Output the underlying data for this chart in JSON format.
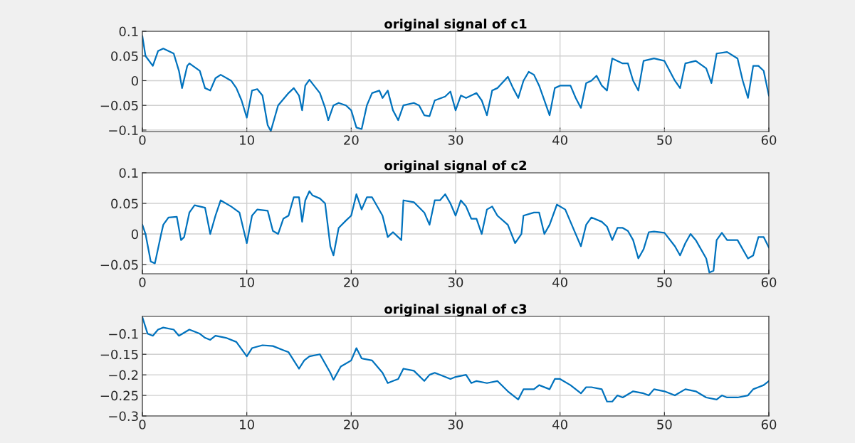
{
  "chart_data": [
    {
      "type": "line",
      "title": "original signal of c1",
      "xlim": [
        0,
        60
      ],
      "xticks": [
        0,
        10,
        20,
        30,
        40,
        50,
        60
      ],
      "ylim": [
        -0.103,
        0.1
      ],
      "yticks": [
        -0.1,
        -0.05,
        0,
        0.05,
        0.1
      ],
      "grid": true,
      "series": [
        {
          "color": "#0072bd",
          "x": [
            0,
            0.3,
            1,
            1.5,
            2,
            3,
            3.5,
            3.8,
            4.3,
            4.5,
            5.5,
            6,
            6.5,
            7,
            7.5,
            8.5,
            9,
            9.5,
            10,
            10.5,
            11,
            11.5,
            12,
            12.3,
            13,
            14,
            14.5,
            15,
            15.3,
            15.6,
            16,
            17,
            17.5,
            17.8,
            18.3,
            18.8,
            19.5,
            20,
            20.5,
            21,
            21.5,
            22,
            22.7,
            23,
            23.5,
            24,
            24.5,
            25,
            26,
            26.5,
            27,
            27.5,
            28,
            29,
            29.5,
            30,
            30.5,
            31,
            32,
            32.5,
            33,
            33.5,
            34,
            35,
            35.5,
            36,
            36.5,
            37,
            37.5,
            38,
            38.5,
            39,
            39.5,
            40,
            41,
            41.5,
            42,
            42.5,
            43,
            43.5,
            44,
            44.5,
            45,
            46,
            46.5,
            47,
            47.5,
            48,
            49,
            50,
            51,
            51.5,
            52,
            53,
            54,
            54.5,
            55,
            56,
            57,
            57.5,
            58,
            58.5,
            59,
            59.5,
            60
          ],
          "values": [
            0.09,
            0.05,
            0.03,
            0.06,
            0.065,
            0.055,
            0.02,
            -0.015,
            0.03,
            0.035,
            0.02,
            -0.015,
            -0.02,
            0.005,
            0.012,
            0.0,
            -0.015,
            -0.04,
            -0.075,
            -0.02,
            -0.017,
            -0.03,
            -0.09,
            -0.102,
            -0.05,
            -0.025,
            -0.015,
            -0.03,
            -0.06,
            -0.01,
            0.002,
            -0.025,
            -0.055,
            -0.08,
            -0.05,
            -0.045,
            -0.05,
            -0.06,
            -0.095,
            -0.098,
            -0.05,
            -0.025,
            -0.02,
            -0.035,
            -0.02,
            -0.06,
            -0.08,
            -0.05,
            -0.045,
            -0.05,
            -0.07,
            -0.072,
            -0.04,
            -0.032,
            -0.022,
            -0.06,
            -0.03,
            -0.035,
            -0.025,
            -0.04,
            -0.07,
            -0.02,
            -0.015,
            0.008,
            -0.015,
            -0.035,
            0.0,
            0.018,
            0.012,
            -0.01,
            -0.04,
            -0.07,
            -0.015,
            -0.01,
            -0.01,
            -0.035,
            -0.055,
            -0.005,
            0.0,
            0.01,
            -0.01,
            -0.02,
            0.045,
            0.035,
            0.035,
            0.0,
            -0.02,
            0.04,
            0.045,
            0.04,
            0.0,
            -0.015,
            0.035,
            0.04,
            0.025,
            -0.005,
            0.055,
            0.058,
            0.045,
            0.0,
            -0.035,
            0.03,
            0.03,
            0.02,
            -0.03
          ]
        }
      ]
    },
    {
      "type": "line",
      "title": "original signal of c2",
      "xlim": [
        0,
        60
      ],
      "xticks": [
        0,
        10,
        20,
        30,
        40,
        50,
        60
      ],
      "ylim": [
        -0.065,
        0.1
      ],
      "yticks": [
        -0.05,
        0,
        0.05,
        0.1
      ],
      "grid": true,
      "series": [
        {
          "color": "#0072bd",
          "x": [
            0,
            0.3,
            0.8,
            1.2,
            1.8,
            2,
            2.5,
            3.3,
            3.7,
            4,
            4.5,
            5,
            6,
            6.5,
            7,
            7.5,
            8.5,
            9.3,
            10,
            10.5,
            11,
            12,
            12.5,
            13,
            13.5,
            14,
            14.5,
            15,
            15.3,
            15.6,
            16,
            16.3,
            17,
            17.5,
            18,
            18.3,
            18.8,
            19.5,
            20,
            20.5,
            21,
            21.5,
            22,
            23,
            23.5,
            24,
            24.8,
            25,
            26,
            27,
            27.5,
            28,
            28.5,
            29,
            29.5,
            30,
            30.5,
            31,
            31.5,
            32,
            32.5,
            33,
            33.5,
            34,
            35,
            35.7,
            36.3,
            36.5,
            37.5,
            38,
            38.5,
            39,
            39.7,
            40.5,
            41,
            41.5,
            42,
            42.5,
            43,
            44,
            44.5,
            45,
            45.5,
            46,
            46.5,
            47,
            47.5,
            48,
            48.5,
            49,
            50,
            51,
            51.5,
            52,
            52.5,
            53,
            54,
            54.3,
            54.7,
            55,
            55.5,
            56,
            57,
            58,
            58.5,
            59,
            59.5,
            60
          ],
          "values": [
            0.015,
            0.0,
            -0.045,
            -0.048,
            0.0,
            0.015,
            0.027,
            0.028,
            -0.01,
            -0.005,
            0.035,
            0.047,
            0.043,
            0.0,
            0.03,
            0.055,
            0.045,
            0.035,
            -0.015,
            0.03,
            0.04,
            0.038,
            0.005,
            0.0,
            0.025,
            0.03,
            0.06,
            0.06,
            0.02,
            0.055,
            0.07,
            0.063,
            0.058,
            0.05,
            -0.02,
            -0.035,
            0.01,
            0.022,
            0.03,
            0.065,
            0.04,
            0.06,
            0.06,
            0.03,
            -0.005,
            0.003,
            -0.01,
            0.055,
            0.052,
            0.035,
            0.015,
            0.055,
            0.055,
            0.065,
            0.05,
            0.03,
            0.055,
            0.045,
            0.025,
            0.025,
            0.0,
            0.04,
            0.045,
            0.03,
            0.015,
            -0.015,
            0.0,
            0.03,
            0.035,
            0.035,
            0.0,
            0.015,
            0.048,
            0.04,
            0.02,
            0.0,
            -0.02,
            0.015,
            0.027,
            0.02,
            0.012,
            -0.01,
            0.01,
            0.01,
            0.005,
            -0.01,
            -0.04,
            -0.025,
            0.003,
            0.004,
            0.002,
            -0.02,
            -0.035,
            -0.015,
            0.0,
            -0.01,
            -0.04,
            -0.063,
            -0.06,
            -0.01,
            0.002,
            -0.01,
            -0.01,
            -0.04,
            -0.035,
            -0.005,
            -0.005,
            -0.022
          ]
        }
      ]
    },
    {
      "type": "line",
      "title": "original signal of c3",
      "xlim": [
        0,
        60
      ],
      "xticks": [
        0,
        10,
        20,
        30,
        40,
        50,
        60
      ],
      "ylim": [
        -0.3,
        -0.058
      ],
      "yticks": [
        -0.3,
        -0.25,
        -0.2,
        -0.15,
        -0.1
      ],
      "grid": true,
      "series": [
        {
          "color": "#0072bd",
          "x": [
            0,
            0.5,
            1,
            1.5,
            2,
            3,
            3.5,
            4.5,
            5.5,
            6,
            6.5,
            7,
            8,
            9,
            10,
            10.5,
            11.5,
            12.5,
            13.5,
            14,
            15,
            15.5,
            16,
            17,
            18,
            18.3,
            19,
            20,
            20.5,
            21,
            22,
            23,
            23.5,
            24,
            24.5,
            25,
            26,
            27,
            27.5,
            28,
            29,
            29.5,
            30,
            31,
            31.5,
            32,
            33,
            34,
            35,
            36,
            36.5,
            37.5,
            38,
            39,
            39.5,
            40,
            41,
            42,
            42.5,
            43,
            44,
            44.5,
            45,
            45.5,
            46,
            47,
            48,
            48.5,
            49,
            50,
            51,
            52,
            53,
            54,
            55,
            55.5,
            56,
            57,
            58,
            58.5,
            59,
            59.5,
            60
          ],
          "values": [
            -0.06,
            -0.1,
            -0.105,
            -0.09,
            -0.085,
            -0.09,
            -0.105,
            -0.09,
            -0.1,
            -0.11,
            -0.115,
            -0.105,
            -0.11,
            -0.12,
            -0.155,
            -0.135,
            -0.128,
            -0.13,
            -0.14,
            -0.145,
            -0.185,
            -0.165,
            -0.155,
            -0.15,
            -0.195,
            -0.212,
            -0.18,
            -0.165,
            -0.135,
            -0.16,
            -0.165,
            -0.195,
            -0.22,
            -0.215,
            -0.21,
            -0.185,
            -0.19,
            -0.215,
            -0.2,
            -0.195,
            -0.205,
            -0.21,
            -0.205,
            -0.2,
            -0.22,
            -0.215,
            -0.22,
            -0.215,
            -0.24,
            -0.26,
            -0.235,
            -0.235,
            -0.225,
            -0.235,
            -0.21,
            -0.21,
            -0.225,
            -0.245,
            -0.23,
            -0.23,
            -0.235,
            -0.265,
            -0.265,
            -0.25,
            -0.255,
            -0.24,
            -0.245,
            -0.25,
            -0.235,
            -0.24,
            -0.25,
            -0.235,
            -0.24,
            -0.255,
            -0.26,
            -0.25,
            -0.255,
            -0.255,
            -0.25,
            -0.235,
            -0.23,
            -0.225,
            -0.215
          ]
        }
      ]
    }
  ]
}
